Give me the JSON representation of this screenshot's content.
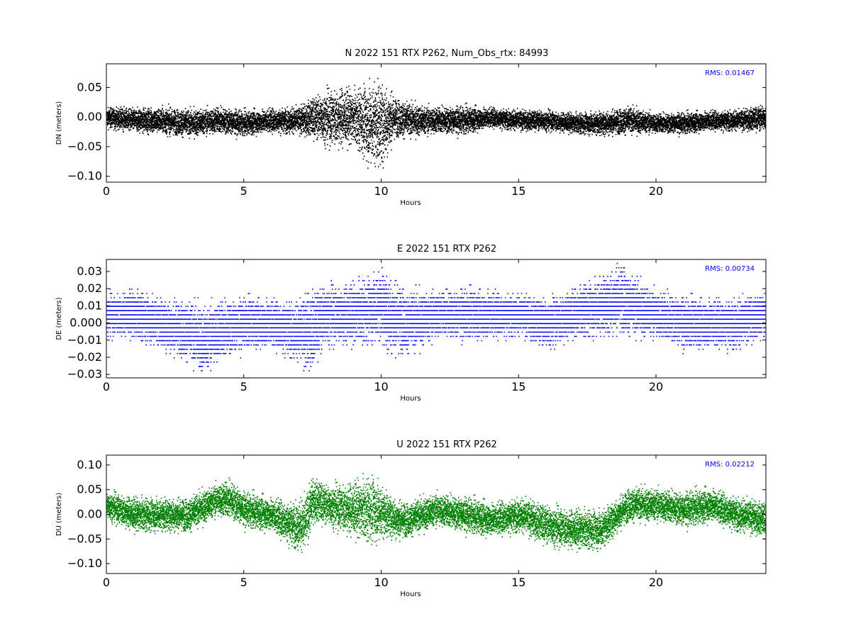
{
  "chart_data": [
    {
      "type": "scatter",
      "title": "N 2022 151 RTX  P262, Num_Obs_rtx: 84993",
      "xlabel": "Hours",
      "ylabel": "DN (meters)",
      "xlim": [
        0,
        24
      ],
      "ylim": [
        -0.11,
        0.09
      ],
      "xticks": [
        0,
        5,
        10,
        15,
        20
      ],
      "yticks": [
        -0.1,
        -0.05,
        0.0,
        0.05
      ],
      "ytick_labels": [
        "−0.10",
        "−0.05",
        "0.00",
        "0.05"
      ],
      "annotation": "RMS:  0.01467",
      "color": "#000000",
      "grid": false,
      "series": [
        {
          "values_summary": "dense per-epoch residuals",
          "x": [
            0,
            1,
            2,
            3,
            4,
            5,
            6,
            7,
            7.5,
            8,
            8.5,
            9,
            9.5,
            10,
            10.5,
            11,
            12,
            13,
            14,
            15,
            16,
            17,
            18,
            19,
            20,
            21,
            22,
            23,
            24
          ],
          "y_center": [
            0.0,
            -0.005,
            -0.005,
            -0.01,
            -0.005,
            -0.01,
            -0.005,
            -0.005,
            0.0,
            0.0,
            0.0,
            0.0,
            -0.01,
            -0.01,
            0.0,
            -0.005,
            -0.005,
            -0.005,
            0.0,
            -0.005,
            -0.005,
            -0.01,
            -0.01,
            -0.005,
            -0.01,
            -0.01,
            -0.005,
            -0.005,
            0.0
          ],
          "y_half_spread": [
            0.015,
            0.018,
            0.02,
            0.02,
            0.02,
            0.018,
            0.018,
            0.02,
            0.03,
            0.04,
            0.045,
            0.04,
            0.06,
            0.065,
            0.03,
            0.025,
            0.02,
            0.02,
            0.015,
            0.015,
            0.015,
            0.015,
            0.018,
            0.02,
            0.015,
            0.015,
            0.015,
            0.015,
            0.02
          ]
        }
      ]
    },
    {
      "type": "scatter",
      "title": "E 2022 151 RTX  P262",
      "xlabel": "Hours",
      "ylabel": "DE (meters)",
      "xlim": [
        0,
        24
      ],
      "ylim": [
        -0.032,
        0.037
      ],
      "xticks": [
        0,
        5,
        10,
        15,
        20
      ],
      "yticks": [
        -0.03,
        -0.02,
        -0.01,
        0.0,
        0.01,
        0.02,
        0.03
      ],
      "ytick_labels": [
        "−0.03",
        "−0.02",
        "−0.01",
        "0.000",
        "0.01",
        "0.02",
        "0.03"
      ],
      "annotation": "RMS:  0.00734",
      "color": "#0000ff",
      "grid": false,
      "series": [
        {
          "values_summary": "dense per-epoch residuals (quantized)",
          "x": [
            0,
            1,
            2,
            3,
            3.5,
            4,
            5,
            6,
            7,
            7.3,
            8,
            9,
            10,
            10.3,
            11,
            12,
            13,
            14,
            15,
            16,
            17,
            18,
            18.8,
            19,
            20,
            21,
            22,
            23,
            24
          ],
          "y_center": [
            0.005,
            0.005,
            0.0,
            -0.005,
            -0.01,
            -0.005,
            0.0,
            0.0,
            -0.005,
            -0.005,
            0.005,
            0.005,
            0.01,
            0.005,
            0.0,
            0.005,
            0.005,
            0.005,
            0.005,
            0.0,
            0.005,
            0.01,
            0.015,
            0.01,
            0.005,
            0.0,
            0.0,
            0.0,
            0.005
          ],
          "y_half_spread": [
            0.01,
            0.012,
            0.012,
            0.015,
            0.018,
            0.015,
            0.012,
            0.012,
            0.015,
            0.02,
            0.015,
            0.015,
            0.018,
            0.02,
            0.015,
            0.012,
            0.012,
            0.012,
            0.01,
            0.012,
            0.012,
            0.015,
            0.018,
            0.015,
            0.012,
            0.012,
            0.012,
            0.012,
            0.01
          ]
        }
      ]
    },
    {
      "type": "scatter",
      "title": "U 2022 151 RTX  P262",
      "xlabel": "Hours",
      "ylabel": "DU (meters)",
      "xlim": [
        0,
        24
      ],
      "ylim": [
        -0.12,
        0.12
      ],
      "xticks": [
        0,
        5,
        10,
        15,
        20
      ],
      "yticks": [
        -0.1,
        -0.05,
        0.0,
        0.05,
        0.1
      ],
      "ytick_labels": [
        "−0.10",
        "−0.05",
        "0.00",
        "0.05",
        "0.10"
      ],
      "annotation": "RMS:  0.02212",
      "color": "#008000",
      "grid": false,
      "series": [
        {
          "values_summary": "dense per-epoch residuals",
          "x": [
            0,
            1,
            2,
            3,
            4,
            4.5,
            5,
            6,
            6.8,
            7.2,
            7.5,
            8,
            9,
            9.7,
            10.2,
            10.6,
            11,
            12,
            13,
            14,
            15,
            16,
            17,
            18,
            18.6,
            19,
            20,
            21,
            22,
            23,
            24
          ],
          "y_center": [
            0.02,
            0.0,
            0.0,
            0.0,
            0.03,
            0.03,
            0.01,
            0.0,
            -0.02,
            -0.02,
            0.03,
            0.02,
            0.01,
            0.01,
            0.0,
            -0.01,
            -0.01,
            0.01,
            0.0,
            -0.01,
            0.0,
            -0.02,
            -0.03,
            -0.03,
            0.0,
            0.02,
            0.02,
            0.01,
            0.02,
            0.0,
            -0.01
          ],
          "y_half_spread": [
            0.025,
            0.03,
            0.03,
            0.03,
            0.03,
            0.035,
            0.03,
            0.03,
            0.04,
            0.05,
            0.04,
            0.035,
            0.05,
            0.06,
            0.04,
            0.035,
            0.03,
            0.03,
            0.03,
            0.03,
            0.03,
            0.035,
            0.035,
            0.035,
            0.03,
            0.03,
            0.03,
            0.03,
            0.03,
            0.03,
            0.03
          ]
        }
      ]
    }
  ]
}
